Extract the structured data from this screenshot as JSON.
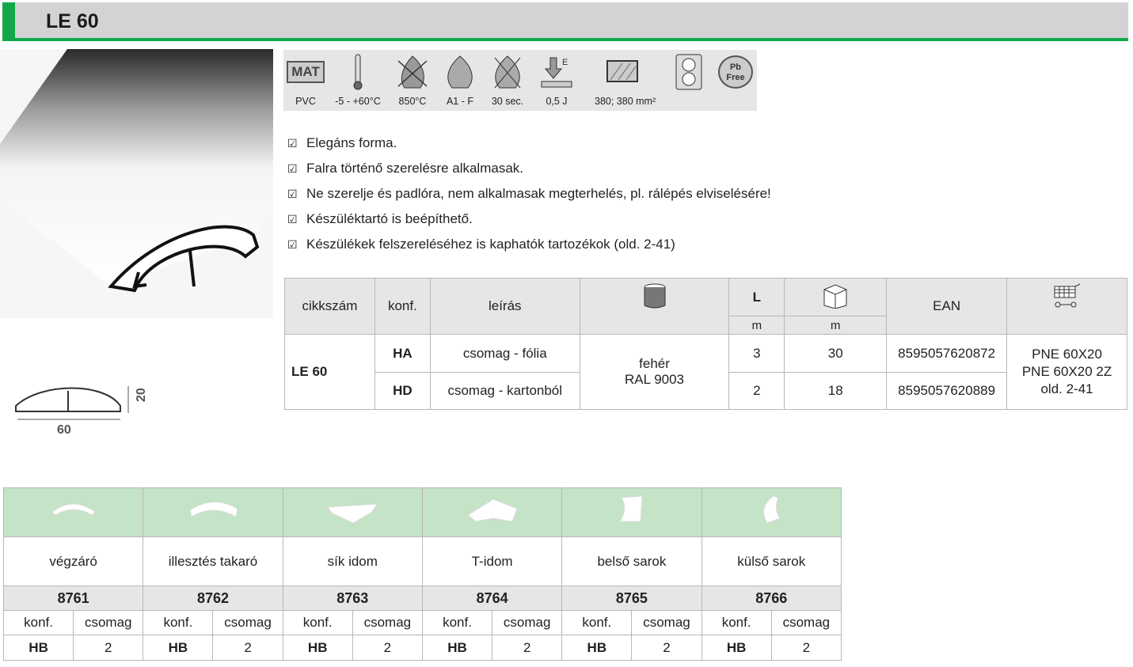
{
  "title": "LE 60",
  "specs": [
    {
      "icon": "material-icon",
      "label": "PVC",
      "badge": "MAT"
    },
    {
      "icon": "thermometer-icon",
      "label": "-5 - +60°C"
    },
    {
      "icon": "glow-wire-flame-icon",
      "label": "850°C"
    },
    {
      "icon": "flame-class-icon",
      "label": "A1 - F"
    },
    {
      "icon": "self-extinguish-icon",
      "label": "30 sec."
    },
    {
      "icon": "impact-energy-icon",
      "label": "0,5 J",
      "sup": "E"
    },
    {
      "icon": "cross-section-icon",
      "label": "380; 380 mm²"
    },
    {
      "icon": "socket-icon",
      "label": ""
    },
    {
      "icon": "pb-free-icon",
      "label": "",
      "badge": "Pb Free"
    }
  ],
  "features": [
    "Elegáns forma.",
    "Falra történő szerelésre alkalmasak.",
    "Ne szerelje és padlóra, nem alkalmasak megterhelés, pl. rálépés elviselésére!",
    "Készüléktartó is beépíthető.",
    "Készülékek felszereléséhez is kaphatók tartozékok (old. 2-41)"
  ],
  "dimensions": {
    "width": "60",
    "height": "20"
  },
  "table": {
    "headers": {
      "code": "cikkszám",
      "conf": "konf.",
      "desc": "leírás",
      "color_icon": "paint-bucket-icon",
      "length": "L",
      "length_unit": "m",
      "pack_icon": "box-icon",
      "pack_unit": "m",
      "ean": "EAN",
      "cart_icon": "cart-icon"
    },
    "code": "LE 60",
    "color": "fehér",
    "ral": "RAL 9003",
    "compat": [
      "PNE 60X20",
      "PNE 60X20 2Z",
      "old. 2-41"
    ],
    "rows": [
      {
        "conf": "HA",
        "desc": "csomag - fólia",
        "length": "3",
        "pack": "30",
        "ean": "8595057620872"
      },
      {
        "conf": "HD",
        "desc": "csomag - kartonból",
        "length": "2",
        "pack": "18",
        "ean": "8595057620889"
      }
    ]
  },
  "accessories": {
    "conf_label": "konf.",
    "pack_label": "csomag",
    "items": [
      {
        "name": "végzáró",
        "code": "8761",
        "conf": "HB",
        "pack": "2"
      },
      {
        "name": "illesztés takaró",
        "code": "8762",
        "conf": "HB",
        "pack": "2"
      },
      {
        "name": "sík idom",
        "code": "8763",
        "conf": "HB",
        "pack": "2"
      },
      {
        "name": "T-idom",
        "code": "8764",
        "conf": "HB",
        "pack": "2"
      },
      {
        "name": "belső sarok",
        "code": "8765",
        "conf": "HB",
        "pack": "2"
      },
      {
        "name": "külső sarok",
        "code": "8766",
        "conf": "HB",
        "pack": "2"
      }
    ]
  },
  "colors": {
    "green": "#12a84a",
    "header_gray": "#d3d3d5",
    "light_green": "#c5e3c6",
    "cell_gray": "#e6e6e6"
  }
}
